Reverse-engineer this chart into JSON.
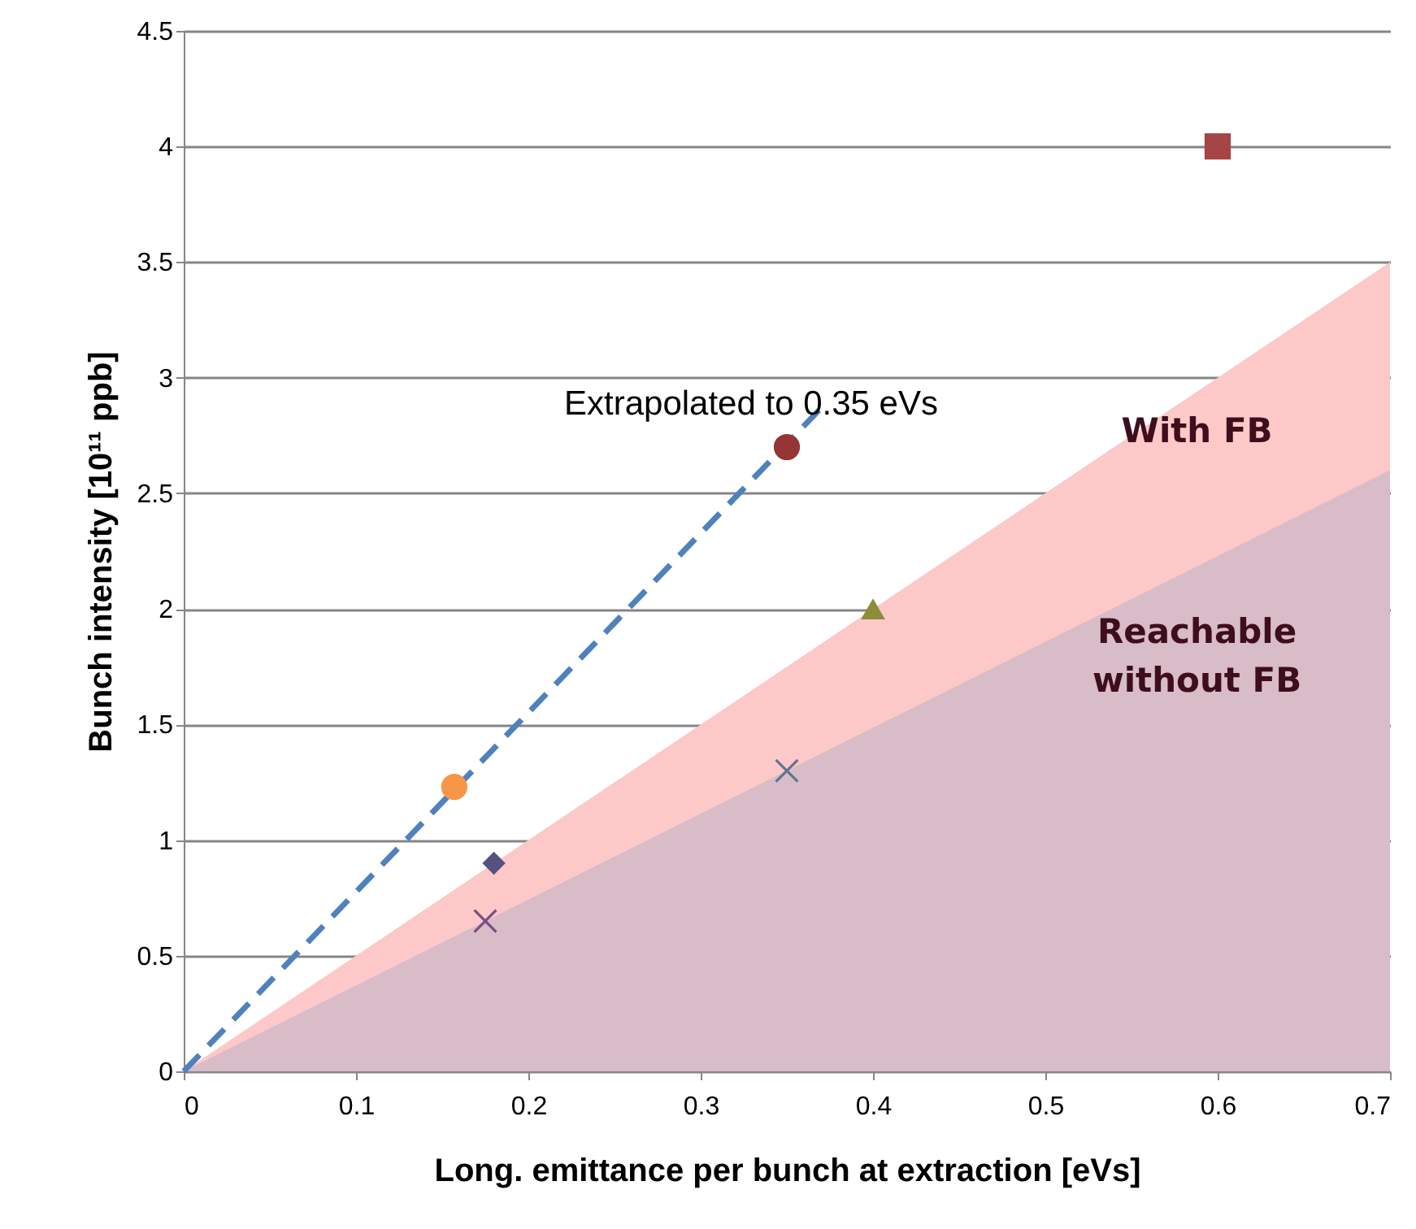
{
  "chart_data": {
    "type": "scatter",
    "xlabel": "Long. emittance per bunch at extraction [eVs]",
    "ylabel": "Bunch intensity [10¹¹ ppb]",
    "xlim": [
      0,
      0.7
    ],
    "xticks": [
      0,
      0.1,
      0.2,
      0.3,
      0.4,
      0.5,
      0.6,
      0.7
    ],
    "ylim": [
      0,
      4.5
    ],
    "yticks": [
      0,
      0.5,
      1,
      1.5,
      2,
      2.5,
      3,
      3.5,
      4,
      4.5
    ],
    "grid": "y",
    "series": [
      {
        "type": "area",
        "name": "With FB",
        "color": "#fcc8c8",
        "x": [
          0,
          0.7
        ],
        "values": [
          0,
          3.5
        ]
      },
      {
        "type": "area",
        "name": "Reachable without FB",
        "color": "#d8bcc8",
        "x": [
          0,
          0.7
        ],
        "values": [
          0,
          2.6
        ]
      },
      {
        "type": "line",
        "color": "#4f81bd",
        "line_style": "dashed",
        "marker": "none",
        "x": [
          0,
          0.37
        ],
        "values": [
          0,
          2.87
        ]
      },
      {
        "color": "#a54545",
        "marker": "square",
        "x": [
          0.6
        ],
        "values": [
          4.0
        ]
      },
      {
        "type": "scatter",
        "color": "#953535",
        "marker": "circle",
        "x": [
          0.35
        ],
        "values": [
          2.7
        ]
      },
      {
        "type": "scatter",
        "color": "#8c8c3a",
        "marker": "triangle",
        "x": [
          0.4
        ],
        "values": [
          2.0
        ]
      },
      {
        "type": "scatter",
        "color": "#5f7590",
        "marker": "cross",
        "x": [
          0.35
        ],
        "values": [
          1.3
        ]
      },
      {
        "type": "scatter",
        "color": "#f79646",
        "marker": "circle",
        "x": [
          0.157
        ],
        "values": [
          1.23
        ]
      },
      {
        "type": "scatter",
        "color": "#55527f",
        "marker": "diamond",
        "x": [
          0.18
        ],
        "values": [
          0.9
        ]
      },
      {
        "type": "scatter",
        "color": "#7a4f7f",
        "marker": "cross",
        "x": [
          0.175
        ],
        "values": [
          0.65
        ]
      }
    ],
    "annotations": [
      {
        "text": "Extrapolated to 0.35 eVs",
        "x": 0.35,
        "y": 2.7
      }
    ]
  }
}
